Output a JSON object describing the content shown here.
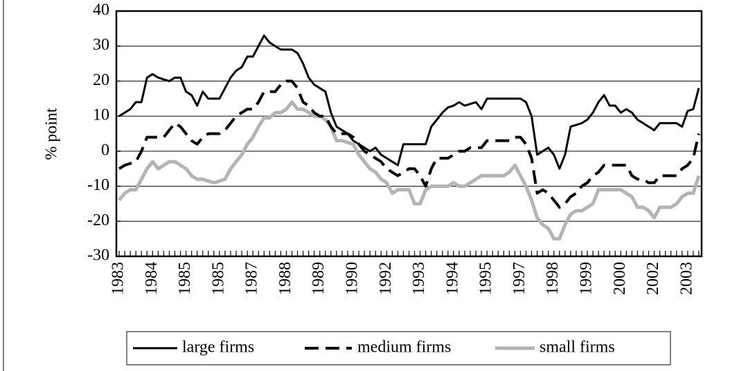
{
  "chart_data": {
    "type": "line",
    "y_label": "% point",
    "ylim": [
      -30,
      40
    ],
    "yticks": [
      -30,
      -20,
      -10,
      0,
      10,
      20,
      30,
      40
    ],
    "grid": true,
    "legend": "bottom",
    "categories": [
      "1983",
      null,
      null,
      null,
      null,
      null,
      "1984",
      null,
      null,
      null,
      null,
      null,
      "1985",
      null,
      null,
      null,
      null,
      null,
      "1985",
      null,
      null,
      null,
      null,
      null,
      "1987",
      null,
      null,
      null,
      null,
      null,
      "1988",
      null,
      null,
      null,
      null,
      null,
      "1989",
      null,
      null,
      null,
      null,
      null,
      "1990",
      null,
      null,
      null,
      null,
      null,
      "1992",
      null,
      null,
      null,
      null,
      null,
      "1993",
      null,
      null,
      null,
      null,
      null,
      "1994",
      null,
      null,
      null,
      null,
      null,
      "1995",
      null,
      null,
      null,
      null,
      null,
      "1997",
      null,
      null,
      null,
      null,
      null,
      "1998",
      null,
      null,
      null,
      null,
      null,
      "1999",
      null,
      null,
      null,
      null,
      null,
      "2000",
      null,
      null,
      null,
      null,
      null,
      "2002",
      null,
      null,
      null,
      null,
      null,
      "2003",
      null,
      null
    ],
    "series": [
      {
        "name": "large firms",
        "color": "#000000",
        "line_style": "solid",
        "values": [
          10,
          11,
          12,
          14,
          14,
          21,
          22,
          21,
          20.5,
          20,
          21,
          21,
          17,
          16,
          13,
          17,
          15,
          15,
          15,
          18,
          21,
          23,
          24,
          27,
          27,
          30,
          33,
          31,
          30,
          29,
          29,
          29,
          28,
          25,
          21,
          19,
          18,
          17,
          11,
          7,
          6,
          5,
          3,
          2,
          1,
          0,
          1,
          -1,
          -2,
          -3,
          -4,
          2,
          2,
          2,
          2,
          2,
          7,
          9,
          11,
          12.5,
          13,
          14,
          13,
          13.5,
          14,
          12,
          15,
          15,
          15,
          15,
          15,
          15,
          15,
          14,
          10,
          -1,
          0,
          1,
          -1,
          -5,
          -1,
          7,
          7.5,
          8,
          9,
          11,
          14,
          16,
          13,
          13,
          11,
          12,
          11,
          9,
          8,
          7,
          6,
          8,
          8,
          8,
          8,
          7,
          11.5,
          12,
          18
        ]
      },
      {
        "name": "medium firms",
        "color": "#000000",
        "line_style": "dashed",
        "values": [
          -5,
          -4,
          -3.5,
          -3,
          0,
          4,
          4,
          4,
          4,
          6,
          8,
          7,
          5,
          3,
          2,
          4,
          5,
          5,
          5,
          6,
          8,
          10,
          11,
          12,
          12,
          14,
          17,
          17,
          17,
          19,
          20,
          20,
          18,
          14,
          13,
          11,
          10,
          10,
          7,
          5,
          5,
          5,
          4,
          2,
          0,
          -1,
          -2,
          -3,
          -5,
          -6,
          -7,
          -6,
          -5,
          -5,
          -7,
          -10,
          -5,
          -2,
          -2,
          -2,
          -1,
          0,
          0,
          1,
          1,
          1,
          3,
          3,
          3,
          3,
          3,
          4,
          4,
          2,
          -2,
          -12,
          -11,
          -12,
          -14,
          -16,
          -15,
          -13,
          -12,
          -10,
          -9,
          -7,
          -6,
          -4,
          -4,
          -4,
          -4,
          -4,
          -7,
          -8,
          -8,
          -9,
          -9,
          -7,
          -7,
          -7,
          -7,
          -5,
          -4,
          -2,
          5
        ]
      },
      {
        "name": "small firms",
        "color": "#b4b4b4",
        "line_style": "solid",
        "values": [
          -14,
          -12,
          -11,
          -11,
          -8,
          -5,
          -3,
          -5,
          -4,
          -3,
          -3,
          -4,
          -5,
          -7,
          -8,
          -8,
          -8.5,
          -9,
          -8.5,
          -8,
          -5,
          -3,
          -1,
          2,
          4,
          7,
          9.5,
          9.5,
          11,
          11,
          12,
          14,
          12,
          12,
          11,
          10,
          10,
          9,
          7,
          3,
          3,
          2.5,
          2,
          -1,
          -3,
          -5,
          -6,
          -8,
          -9,
          -12,
          -11,
          -11,
          -11,
          -15,
          -15,
          -11,
          -10,
          -10,
          -10,
          -10,
          -9,
          -10,
          -10,
          -9,
          -8,
          -7,
          -7,
          -7,
          -7,
          -7,
          -6,
          -4,
          -7,
          -10,
          -14,
          -19,
          -21,
          -22,
          -25,
          -25,
          -21,
          -18,
          -17,
          -17,
          -16,
          -15,
          -11,
          -11,
          -11,
          -11,
          -11,
          -12,
          -13,
          -16,
          -16,
          -17,
          -19,
          -16,
          -16,
          -16,
          -15,
          -13,
          -12,
          -12,
          -7
        ]
      }
    ]
  }
}
